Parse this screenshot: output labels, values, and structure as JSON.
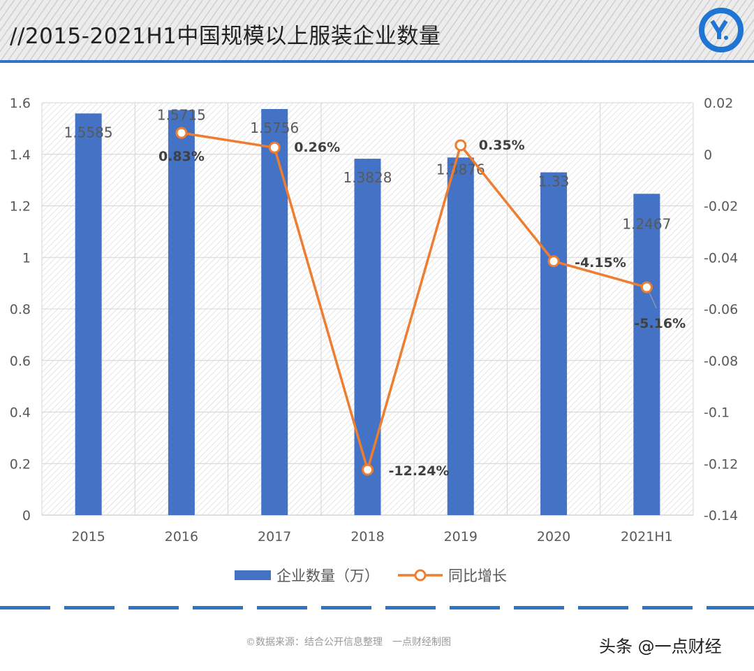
{
  "header": {
    "title": "//2015-2021H1中国规模以上服装企业数量",
    "logo": "YD"
  },
  "chart_data": {
    "type": "bar+line",
    "categories": [
      "2015",
      "2016",
      "2017",
      "2018",
      "2019",
      "2020",
      "2021H1"
    ],
    "series": [
      {
        "name": "企业数量（万）",
        "type": "bar",
        "axis": "left",
        "color": "#4472c4",
        "values": [
          1.5585,
          1.5715,
          1.5756,
          1.3828,
          1.3876,
          1.33,
          1.2467
        ],
        "labels": [
          "1.5585",
          "1.5715",
          "1.5756",
          "1.3828",
          "1.3876",
          "1.33",
          "1.2467"
        ]
      },
      {
        "name": "同比增长",
        "type": "line",
        "axis": "right",
        "color": "#ed7d31",
        "values": [
          null,
          0.0083,
          0.0026,
          -0.1224,
          0.0035,
          -0.0415,
          -0.0516
        ],
        "labels": [
          "",
          "0.83%",
          "0.26%",
          "-12.24%",
          "0.35%",
          "-4.15%",
          "-5.16%"
        ]
      }
    ],
    "left_axis": {
      "range": [
        0,
        1.6
      ],
      "ticks": [
        "0",
        "0.2",
        "0.4",
        "0.6",
        "0.8",
        "1",
        "1.2",
        "1.4",
        "1.6"
      ]
    },
    "right_axis": {
      "range": [
        -0.14,
        0.02
      ],
      "ticks": [
        "-0.14",
        "-0.12",
        "-0.1",
        "-0.08",
        "-0.06",
        "-0.04",
        "-0.02",
        "0",
        "0.02"
      ]
    },
    "grid": true,
    "legend": "bottom"
  },
  "footer": {
    "source": "©数据来源：结合公开信息整理　一点财经制图",
    "watermark": "头条 @一点财经"
  }
}
